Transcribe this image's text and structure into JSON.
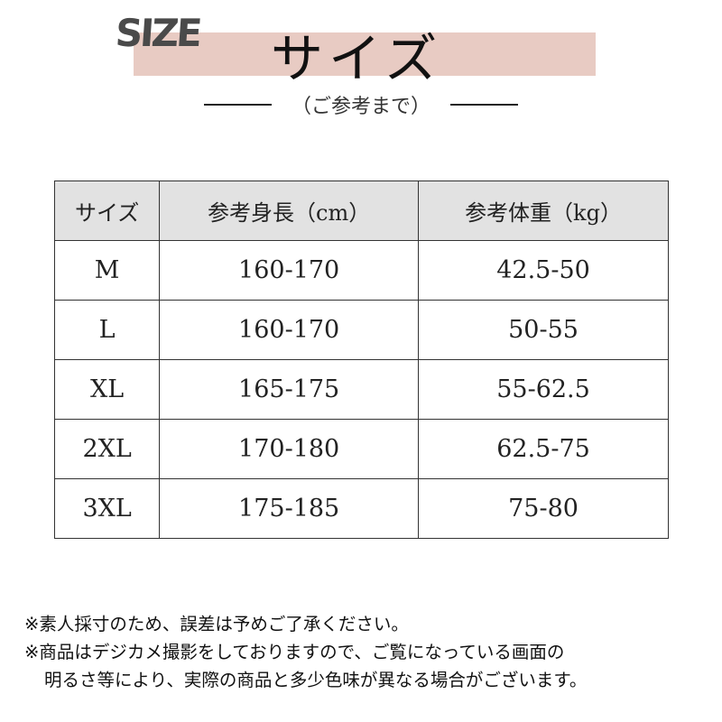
{
  "header": {
    "logo_text": "SIZE",
    "title": "サイズ",
    "subtitle": "（ご参考まで）",
    "banner_color": "#e8cbc3"
  },
  "table": {
    "columns": [
      "サイズ",
      "参考身長（cm）",
      "参考体重（kg）"
    ],
    "rows": [
      [
        "M",
        "160-170",
        "42.5-50"
      ],
      [
        "L",
        "160-170",
        "50-55"
      ],
      [
        "XL",
        "165-175",
        "55-62.5"
      ],
      [
        "2XL",
        "170-180",
        "62.5-75"
      ],
      [
        "3XL",
        "175-185",
        "75-80"
      ]
    ]
  },
  "notes": [
    "※素人採寸のため、誤差は予めご了承ください。",
    "※商品はデジカメ撮影をしておりますので、ご覧になっている画面の",
    "明るさ等により、実際の商品と多少色味が異なる場合がございます。"
  ]
}
